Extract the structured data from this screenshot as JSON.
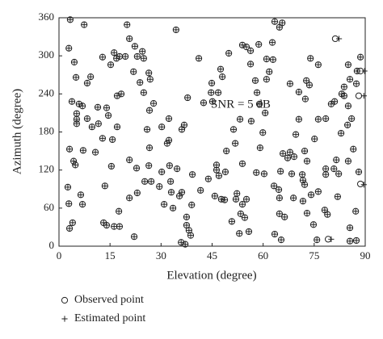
{
  "chart_data": {
    "type": "scatter",
    "xlabel": "Elevation (degree)",
    "ylabel": "Azimuth (degree)",
    "annotation": "SNR = 5 dB",
    "xlim": [
      0,
      90
    ],
    "ylim": [
      0,
      360
    ],
    "xticks": [
      0,
      15,
      30,
      45,
      60,
      75,
      90
    ],
    "yticks": [
      0,
      60,
      120,
      180,
      240,
      300,
      360
    ],
    "legend": "bottom-left",
    "series": [
      {
        "name": "Observed point",
        "marker": "circle",
        "color": "#222222",
        "x": [
          3.3,
          7.4,
          2.9,
          4.5,
          5.0,
          8.3,
          9.3,
          3.8,
          5.9,
          6.9,
          5.2,
          5.2,
          5.2,
          9.7,
          3.1,
          8.3,
          4.3,
          4.8,
          2.6,
          2.9,
          3.1,
          4.0,
          6.9,
          10.7,
          12.8,
          11.6,
          14.5,
          17.1,
          18.3,
          17.1,
          15.7,
          15.2,
          12.8,
          11.4,
          14.0,
          16.2,
          16.9,
          17.8,
          19.5,
          20.7,
          20.0,
          22.3,
          23.8,
          21.9,
          23.0,
          24.5,
          24.9,
          26.4,
          26.8,
          26.6,
          25.9,
          24.9,
          20.7,
          23.0,
          25.2,
          27.1,
          26.4,
          30.2,
          29.5,
          33.0,
          30.9,
          32.5,
          31.8,
          32.3,
          32.3,
          34.7,
          36.8,
          37.8,
          36.1,
          34.4,
          41.1,
          26.6,
          27.8,
          32.8,
          33.5,
          35.4,
          36.1,
          37.5,
          37.5,
          38.2,
          38.7,
          35.9,
          37.1,
          39.0,
          42.5,
          44.7,
          44.9,
          46.3,
          46.3,
          47.0,
          47.7,
          48.9,
          49.2,
          50.8,
          52.0,
          52.3,
          53.0,
          53.4,
          54.6,
          55.8,
          55.1,
          56.3,
          56.5,
          58.0,
          53.9,
          45.8,
          48.7,
          53.9,
          55.1,
          56.3,
          57.7,
          58.2,
          59.1,
          59.9,
          58.9,
          61.0,
          61.8,
          62.9,
          61.0,
          62.7,
          63.4,
          64.8,
          65.6,
          60.3,
          63.2,
          64.6,
          64.8,
          64.8,
          65.3,
          63.4,
          66.3,
          67.2,
          67.9,
          68.4,
          69.1,
          68.9,
          71.5,
          71.7,
          72.2,
          71.7,
          72.9,
          74.1,
          74.8,
          75.8,
          78.1,
          78.9,
          76.2,
          80.8,
          82.2,
          81.5,
          81.9,
          82.9,
          84.8,
          86.0,
          86.5,
          88.1,
          88.6,
          78.4,
          78.4,
          72.9,
          72.2,
          69.6,
          70.5,
          72.4,
          72.7,
          75.1,
          76.2,
          78.4,
          80.0,
          81.0,
          83.1,
          85.5,
          87.6,
          83.8,
          85.0,
          85.0,
          85.5,
          85.5,
          87.4,
          88.6,
          88.6,
          87.4,
          87.2,
          88.1,
          81.2,
          79.1,
          73.9,
          76.2,
          70.5,
          73.6,
          85.0,
          83.8,
          67.9,
          13.1,
          14.0,
          16.2,
          17.8,
          22.1,
          17.6,
          7.1,
          6.4,
          13.5,
          15.4,
          20.7,
          22.8,
          30.2,
          39.2,
          41.6,
          43.9,
          45.1,
          46.8,
          47.5,
          48.0,
          49.9,
          51.3,
          51.8,
          53.2,
          58.7,
          60.6,
          65.1,
          65.8,
          53.9
        ],
        "y": [
          357,
          349,
          312,
          290,
          266,
          257,
          267,
          228,
          224,
          221,
          209,
          200,
          193,
          188,
          153,
          201,
          134,
          128,
          93,
          67,
          28,
          37,
          66,
          148,
          170,
          193,
          206,
          237,
          240,
          188,
          168,
          286,
          298,
          219,
          218,
          305,
          296,
          299,
          299,
          327,
          349,
          315,
          258,
          275,
          299,
          307,
          296,
          273,
          263,
          155,
          184,
          242,
          76,
          84,
          102,
          102,
          127,
          117,
          94,
          85,
          66,
          127,
          162,
          167,
          201,
          122,
          191,
          234,
          184,
          341,
          296,
          214,
          225,
          102,
          60,
          79,
          85,
          46,
          33,
          25,
          17,
          6,
          3,
          65,
          226,
          242,
          257,
          128,
          120,
          111,
          74,
          117,
          150,
          39,
          74,
          83,
          20,
          51,
          45,
          23,
          74,
          287,
          197,
          116,
          66,
          79,
          73,
          317,
          314,
          308,
          261,
          242,
          155,
          179,
          224,
          263,
          275,
          294,
          295,
          321,
          354,
          345,
          352,
          114,
          95,
          89,
          76,
          51,
          10,
          19,
          46,
          139,
          148,
          114,
          141,
          76,
          113,
          104,
          97,
          71,
          52,
          81,
          34,
          10,
          57,
          50,
          86,
          122,
          114,
          136,
          78,
          178,
          191,
          201,
          153,
          117,
          98,
          113,
          122,
          134,
          150,
          176,
          200,
          232,
          261,
          169,
          200,
          201,
          224,
          228,
          240,
          263,
          276,
          251,
          221,
          134,
          29,
          8,
          256,
          298,
          276,
          9,
          55,
          237,
          327,
          11,
          296,
          286,
          243,
          254,
          286,
          237,
          256,
          37,
          33,
          31,
          31,
          15,
          55,
          151,
          81,
          95,
          126,
          136,
          123,
          188,
          113,
          88,
          106,
          228,
          242,
          279,
          267,
          304,
          184,
          162,
          200,
          318,
          210,
          118,
          146,
          130
        ]
      },
      {
        "name": "Estimated point",
        "marker": "plus",
        "color": "#222222",
        "x": [
          3.3,
          7.4,
          2.9,
          4.5,
          5.0,
          8.3,
          9.3,
          3.8,
          5.9,
          6.9,
          5.2,
          5.2,
          5.2,
          9.7,
          3.1,
          8.3,
          4.3,
          4.8,
          2.6,
          2.9,
          3.1,
          4.0,
          6.9,
          10.7,
          12.8,
          11.6,
          14.5,
          17.1,
          18.3,
          17.1,
          15.7,
          15.2,
          12.8,
          11.4,
          14.0,
          16.2,
          16.9,
          17.8,
          19.5,
          20.7,
          20.0,
          22.3,
          23.8,
          21.9,
          23.0,
          24.5,
          24.9,
          26.4,
          26.8,
          26.6,
          25.9,
          24.9,
          20.7,
          23.0,
          25.2,
          27.1,
          26.4,
          30.2,
          29.5,
          33.0,
          30.9,
          32.5,
          31.8,
          32.3,
          32.3,
          34.7,
          36.8,
          37.8,
          36.1,
          34.4,
          41.1,
          26.6,
          27.8,
          32.8,
          33.5,
          35.4,
          36.1,
          37.5,
          37.5,
          38.2,
          38.7,
          35.9,
          37.1,
          39.0,
          42.5,
          44.7,
          44.9,
          46.3,
          46.3,
          47.0,
          47.7,
          48.9,
          49.2,
          50.8,
          52.0,
          52.3,
          53.0,
          53.4,
          54.6,
          55.8,
          55.1,
          56.3,
          56.5,
          58.0,
          53.9,
          45.8,
          48.7,
          53.9,
          55.1,
          56.3,
          57.7,
          58.2,
          59.1,
          59.9,
          58.9,
          61.0,
          61.8,
          62.9,
          61.0,
          62.7,
          63.4,
          64.8,
          65.6,
          60.3,
          63.2,
          64.6,
          64.8,
          64.8,
          65.3,
          63.4,
          66.3,
          67.2,
          67.9,
          68.4,
          69.1,
          68.9,
          71.5,
          71.7,
          72.2,
          71.7,
          72.9,
          74.1,
          74.8,
          75.8,
          78.1,
          78.9,
          76.2,
          80.8,
          82.2,
          81.5,
          81.9,
          82.9,
          84.8,
          86.0,
          86.5,
          88.1,
          89.6,
          78.4,
          78.4,
          72.9,
          72.2,
          69.6,
          70.5,
          72.4,
          72.7,
          75.1,
          76.2,
          78.4,
          80.0,
          81.0,
          83.1,
          85.5,
          87.6,
          83.8,
          85.0,
          85.0,
          85.5,
          85.5,
          87.4,
          88.6,
          89.8,
          87.4,
          87.2,
          89.6,
          82.3,
          80.0,
          73.9,
          76.2,
          70.5,
          73.6,
          85.0,
          83.8,
          67.9,
          13.1,
          14.0,
          16.2,
          17.8,
          22.1,
          17.6,
          7.1,
          6.4,
          13.5,
          15.4,
          20.7,
          22.8,
          30.2,
          39.2,
          41.6,
          43.9,
          45.1,
          46.8,
          47.5,
          48.0,
          49.9,
          51.3,
          51.8,
          53.2,
          58.7,
          60.6,
          65.1,
          65.8,
          53.9
        ],
        "y": [
          357,
          349,
          312,
          290,
          266,
          257,
          267,
          228,
          224,
          221,
          209,
          200,
          193,
          188,
          153,
          201,
          134,
          128,
          93,
          67,
          28,
          37,
          66,
          148,
          170,
          193,
          206,
          237,
          240,
          188,
          168,
          286,
          298,
          219,
          218,
          305,
          296,
          299,
          299,
          327,
          349,
          315,
          258,
          275,
          299,
          307,
          296,
          273,
          263,
          155,
          184,
          242,
          76,
          84,
          102,
          102,
          127,
          117,
          94,
          85,
          66,
          127,
          162,
          167,
          201,
          122,
          191,
          234,
          184,
          341,
          296,
          214,
          225,
          102,
          60,
          79,
          85,
          46,
          33,
          25,
          17,
          6,
          3,
          65,
          226,
          242,
          257,
          128,
          120,
          111,
          74,
          117,
          150,
          39,
          74,
          83,
          20,
          51,
          45,
          23,
          74,
          287,
          197,
          116,
          66,
          79,
          73,
          317,
          314,
          308,
          261,
          242,
          155,
          179,
          224,
          263,
          275,
          294,
          295,
          321,
          354,
          345,
          352,
          114,
          95,
          89,
          76,
          51,
          10,
          19,
          46,
          139,
          148,
          114,
          141,
          76,
          113,
          104,
          97,
          71,
          52,
          81,
          34,
          10,
          57,
          50,
          86,
          122,
          114,
          136,
          78,
          178,
          191,
          201,
          153,
          117,
          97,
          113,
          122,
          134,
          150,
          176,
          200,
          232,
          261,
          169,
          200,
          201,
          224,
          228,
          240,
          263,
          276,
          251,
          221,
          134,
          29,
          8,
          256,
          298,
          276,
          9,
          55,
          237,
          327,
          11,
          296,
          286,
          243,
          254,
          286,
          237,
          256,
          37,
          33,
          31,
          31,
          15,
          55,
          151,
          81,
          95,
          126,
          136,
          123,
          188,
          113,
          88,
          106,
          228,
          242,
          279,
          267,
          304,
          184,
          162,
          200,
          318,
          210,
          118,
          146,
          130
        ]
      }
    ]
  }
}
